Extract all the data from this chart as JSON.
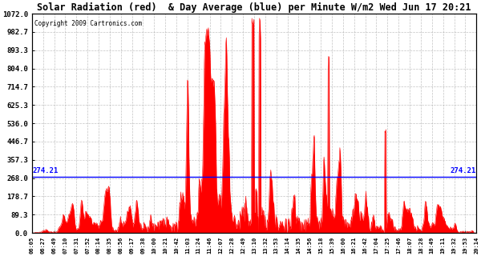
{
  "title": "Solar Radiation (red)  & Day Average (blue) per Minute W/m2 Wed Jun 17 20:21",
  "copyright": "Copyright 2009 Cartronics.com",
  "ymin": 0.0,
  "ymax": 1072.0,
  "yticks": [
    0.0,
    89.3,
    178.7,
    268.0,
    357.3,
    446.7,
    536.0,
    625.3,
    714.7,
    804.0,
    893.3,
    982.7,
    1072.0
  ],
  "day_average": 274.21,
  "background_color": "#ffffff",
  "bar_color": "#ff0000",
  "avg_line_color": "#0000ff",
  "grid_color": "#aaaaaa",
  "xtick_labels": [
    "06:05",
    "06:27",
    "06:49",
    "07:10",
    "07:31",
    "07:52",
    "08:14",
    "08:35",
    "08:56",
    "09:17",
    "09:38",
    "10:00",
    "10:21",
    "10:42",
    "11:03",
    "11:24",
    "11:46",
    "12:07",
    "12:28",
    "12:49",
    "13:10",
    "13:32",
    "13:53",
    "14:14",
    "14:35",
    "14:56",
    "15:18",
    "15:39",
    "16:00",
    "16:21",
    "16:42",
    "17:04",
    "17:25",
    "17:46",
    "18:07",
    "18:28",
    "18:49",
    "19:11",
    "19:32",
    "19:53",
    "20:14"
  ],
  "num_points": 870
}
